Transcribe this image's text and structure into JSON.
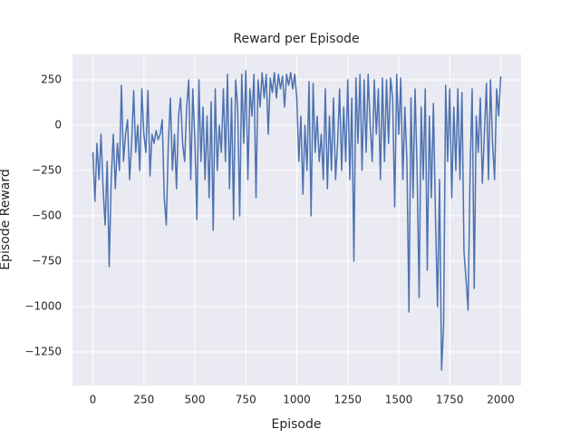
{
  "chart_data": {
    "type": "line",
    "title": "Reward per Episode",
    "xlabel": "Episode",
    "ylabel": "Episode Reward",
    "grid": true,
    "xlim": [
      -100,
      2100
    ],
    "ylim": [
      -1435,
      390
    ],
    "xticks": [
      0,
      250,
      500,
      750,
      1000,
      1250,
      1500,
      1750,
      2000
    ],
    "yticks": [
      {
        "value": -1250,
        "label": "−1250"
      },
      {
        "value": -1000,
        "label": "−1000"
      },
      {
        "value": -750,
        "label": "−750"
      },
      {
        "value": -500,
        "label": "−500"
      },
      {
        "value": -250,
        "label": "−250"
      },
      0,
      250
    ],
    "x": [
      0,
      10,
      20,
      30,
      40,
      50,
      60,
      70,
      80,
      90,
      100,
      110,
      120,
      130,
      140,
      150,
      160,
      170,
      180,
      190,
      200,
      210,
      220,
      230,
      240,
      250,
      260,
      270,
      280,
      290,
      300,
      310,
      320,
      330,
      340,
      350,
      360,
      370,
      380,
      390,
      400,
      410,
      420,
      430,
      440,
      450,
      460,
      470,
      480,
      490,
      500,
      510,
      520,
      530,
      540,
      550,
      560,
      570,
      580,
      590,
      600,
      610,
      620,
      630,
      640,
      650,
      660,
      670,
      680,
      690,
      700,
      710,
      720,
      730,
      740,
      750,
      760,
      770,
      780,
      790,
      800,
      810,
      820,
      830,
      840,
      850,
      860,
      870,
      880,
      890,
      900,
      910,
      920,
      930,
      940,
      950,
      960,
      970,
      980,
      990,
      1000,
      1010,
      1020,
      1030,
      1040,
      1050,
      1060,
      1070,
      1080,
      1090,
      1100,
      1110,
      1120,
      1130,
      1140,
      1150,
      1160,
      1170,
      1180,
      1190,
      1200,
      1210,
      1220,
      1230,
      1240,
      1250,
      1260,
      1270,
      1280,
      1290,
      1300,
      1310,
      1320,
      1330,
      1340,
      1350,
      1360,
      1370,
      1380,
      1390,
      1400,
      1410,
      1420,
      1430,
      1440,
      1450,
      1460,
      1470,
      1480,
      1490,
      1500,
      1510,
      1520,
      1530,
      1540,
      1550,
      1560,
      1570,
      1580,
      1590,
      1600,
      1610,
      1620,
      1630,
      1640,
      1650,
      1660,
      1670,
      1680,
      1690,
      1700,
      1710,
      1720,
      1730,
      1740,
      1750,
      1760,
      1770,
      1780,
      1790,
      1800,
      1810,
      1820,
      1830,
      1840,
      1850,
      1860,
      1870,
      1880,
      1890,
      1900,
      1910,
      1920,
      1930,
      1940,
      1950,
      1960,
      1970,
      1980,
      1990,
      2000
    ],
    "series": [
      {
        "name": "reward",
        "color": "#4c72b0",
        "values": [
          -150,
          -420,
          -100,
          -300,
          -50,
          -350,
          -550,
          -200,
          -780,
          -300,
          -50,
          -350,
          -100,
          -250,
          220,
          -200,
          -50,
          30,
          -300,
          -100,
          190,
          -150,
          0,
          -250,
          200,
          -50,
          -150,
          190,
          -280,
          -50,
          -100,
          -30,
          -80,
          -50,
          30,
          -400,
          -550,
          -100,
          150,
          -250,
          -50,
          -350,
          50,
          150,
          -100,
          -200,
          100,
          250,
          -300,
          200,
          -80,
          -520,
          250,
          -200,
          100,
          -300,
          50,
          -400,
          130,
          -580,
          200,
          -250,
          0,
          -150,
          200,
          -200,
          280,
          -350,
          150,
          -520,
          250,
          100,
          -500,
          280,
          -100,
          300,
          -300,
          200,
          50,
          280,
          -400,
          250,
          100,
          290,
          150,
          280,
          -50,
          260,
          180,
          290,
          150,
          280,
          200,
          270,
          100,
          280,
          220,
          290,
          200,
          280,
          150,
          -200,
          50,
          -380,
          0,
          -250,
          240,
          -500,
          230,
          -150,
          50,
          -200,
          -50,
          -300,
          200,
          -350,
          50,
          -250,
          150,
          -300,
          -100,
          200,
          -250,
          100,
          -200,
          250,
          -300,
          150,
          -750,
          260,
          -100,
          280,
          -250,
          250,
          -150,
          280,
          0,
          -200,
          250,
          -50,
          200,
          -300,
          260,
          -200,
          250,
          -100,
          260,
          150,
          -450,
          280,
          -50,
          260,
          -300,
          100,
          -200,
          -1030,
          150,
          -400,
          200,
          -250,
          -950,
          100,
          -300,
          200,
          -800,
          50,
          -400,
          120,
          -500,
          -1000,
          -300,
          -1350,
          -1100,
          220,
          -200,
          200,
          -400,
          100,
          -250,
          200,
          -300,
          180,
          -700,
          -850,
          -1020,
          -250,
          200,
          -900,
          50,
          -150,
          150,
          -320,
          -50,
          230,
          -300,
          250,
          -100,
          -300,
          200,
          50,
          270
        ]
      }
    ]
  }
}
